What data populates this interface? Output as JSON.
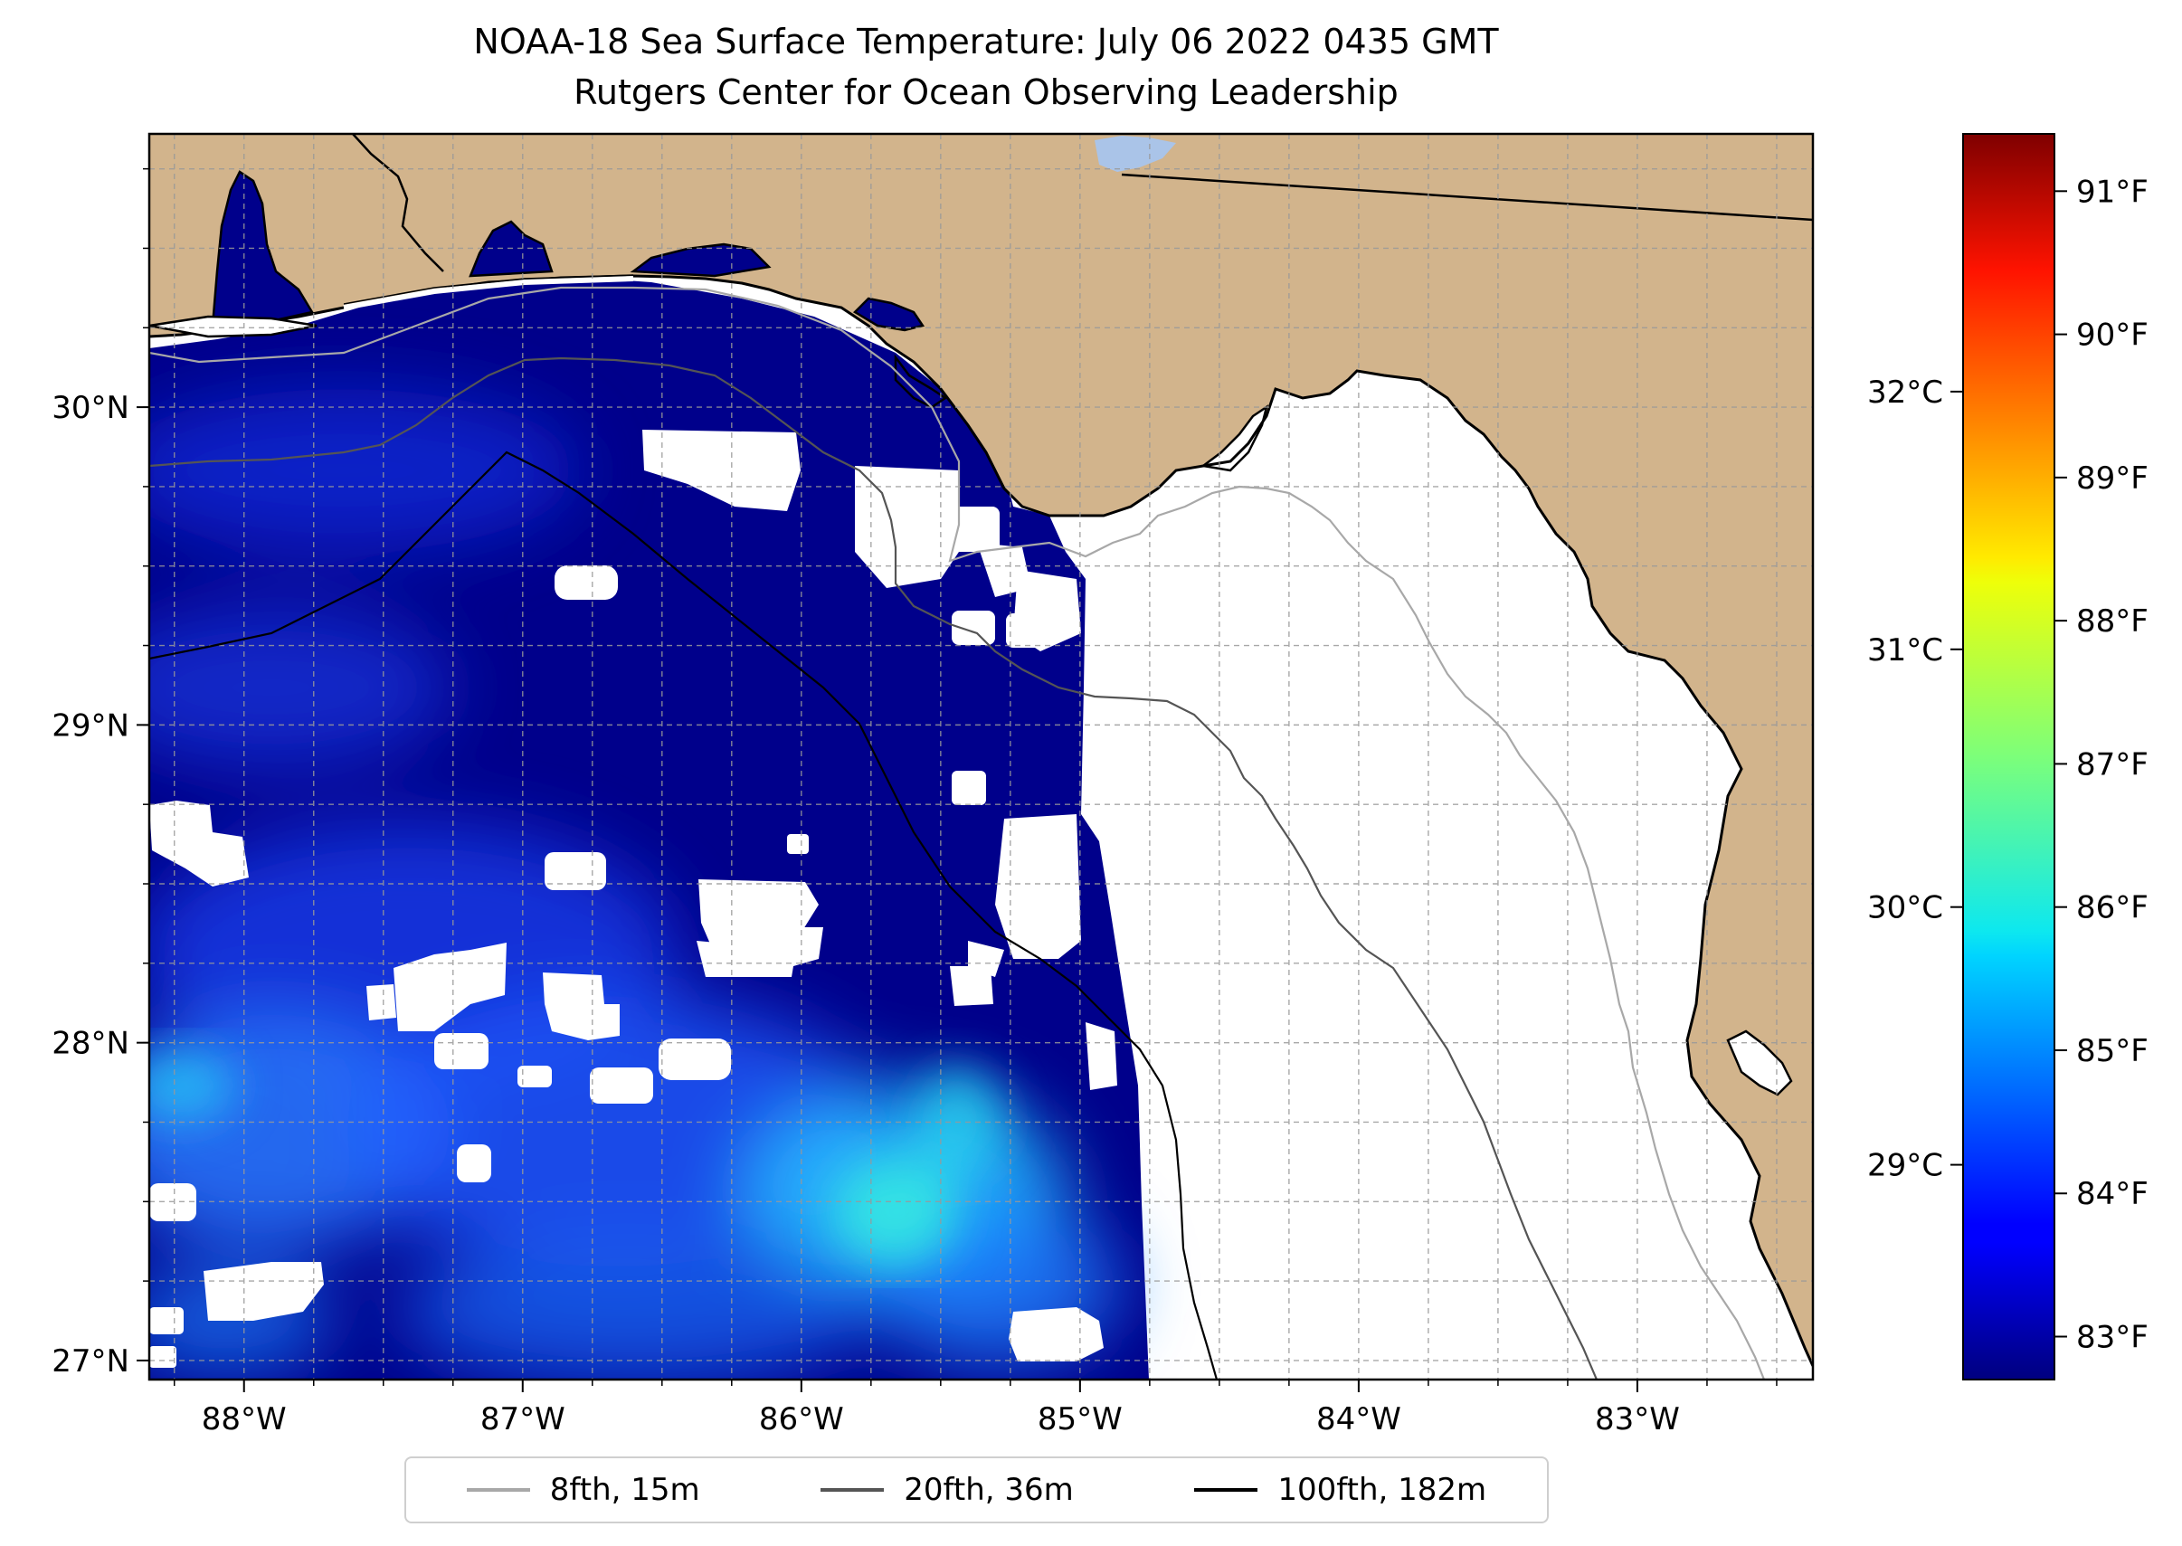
{
  "title": {
    "line1": "NOAA-18 Sea Surface Temperature: July 06 2022 0435 GMT",
    "line2": "Rutgers Center for Ocean Observing Leadership"
  },
  "map": {
    "lon_range": [
      -88.34,
      -82.37
    ],
    "lat_range": [
      26.94,
      30.86
    ],
    "lon_ticks": [
      {
        "value": -88,
        "label": "88°W"
      },
      {
        "value": -87,
        "label": "87°W"
      },
      {
        "value": -86,
        "label": "86°W"
      },
      {
        "value": -85,
        "label": "85°W"
      },
      {
        "value": -84,
        "label": "84°W"
      },
      {
        "value": -83,
        "label": "83°W"
      }
    ],
    "lat_ticks": [
      {
        "value": 30,
        "label": "30°N"
      },
      {
        "value": 29,
        "label": "29°N"
      },
      {
        "value": 28,
        "label": "28°N"
      },
      {
        "value": 27,
        "label": "27°N"
      }
    ],
    "gridlines": "dashed, every 0.25°",
    "land_color": "#d2b48c",
    "no_data_color": "#ffffff",
    "coastline_color": "#000000"
  },
  "colorbar": {
    "colormap": "jet",
    "range_f": [
      82.7,
      91.4
    ],
    "fahrenheit_ticks": [
      "91°F",
      "90°F",
      "89°F",
      "88°F",
      "87°F",
      "86°F",
      "85°F",
      "84°F",
      "83°F"
    ],
    "celsius_ticks": [
      "32°C",
      "31°C",
      "30°C",
      "29°C"
    ]
  },
  "legend": {
    "items": [
      {
        "label": "8fth, 15m",
        "color": "#a8a8a8"
      },
      {
        "label": "20fth, 36m",
        "color": "#555555"
      },
      {
        "label": "100fth, 182m",
        "color": "#000000"
      }
    ],
    "placement": "bottom-center"
  }
}
